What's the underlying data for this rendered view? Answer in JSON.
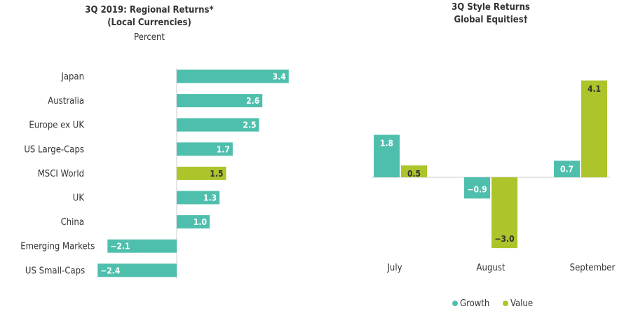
{
  "colors": {
    "growth": "#4fbfad",
    "value": "#adc42a",
    "axis": "#cccccc"
  },
  "chart_data": [
    {
      "type": "bar",
      "orientation": "horizontal",
      "title": "3Q 2019: Regional Returns*",
      "title2": "(Local Currencies)",
      "subtitle": "Percent",
      "categories": [
        "Japan",
        "Australia",
        "Europe ex UK",
        "US Large-Caps",
        "MSCI World",
        "UK",
        "China",
        "Emerging Markets",
        "US Small-Caps"
      ],
      "values": [
        3.4,
        2.6,
        2.5,
        1.7,
        1.5,
        1.3,
        1.0,
        -2.1,
        -2.4
      ],
      "highlight": "MSCI World",
      "data_labels": [
        "3.4",
        "2.6",
        "2.5",
        "1.7",
        "1.5",
        "1.3",
        "1.0",
        "−2.1",
        "−2.4"
      ]
    },
    {
      "type": "bar",
      "orientation": "vertical",
      "title": "3Q Style Returns",
      "title2": "Global Equities†",
      "categories": [
        "July",
        "August",
        "September"
      ],
      "series": [
        {
          "name": "Growth",
          "values": [
            1.8,
            -0.9,
            0.7
          ],
          "data_labels": [
            "1.8",
            "−0.9",
            "0.7"
          ]
        },
        {
          "name": "Value",
          "values": [
            0.5,
            -3.0,
            4.1
          ],
          "data_labels": [
            "0.5",
            "−3.0",
            "4.1"
          ]
        }
      ],
      "legend": "bottom"
    }
  ]
}
